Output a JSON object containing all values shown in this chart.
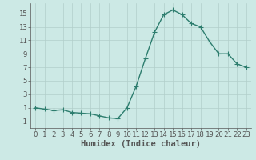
{
  "x": [
    0,
    1,
    2,
    3,
    4,
    5,
    6,
    7,
    8,
    9,
    10,
    11,
    12,
    13,
    14,
    15,
    16,
    17,
    18,
    19,
    20,
    21,
    22,
    23
  ],
  "y": [
    1.0,
    0.8,
    0.6,
    0.7,
    0.3,
    0.2,
    0.1,
    -0.2,
    -0.5,
    -0.6,
    1.0,
    4.2,
    8.3,
    12.2,
    14.8,
    15.5,
    14.8,
    13.5,
    13.0,
    10.8,
    9.0,
    9.0,
    7.5,
    7.0
  ],
  "line_color": "#2d7d6e",
  "marker": "+",
  "marker_size": 4,
  "bg_color": "#cce9e5",
  "grid_color": "#b2ceca",
  "axis_color": "#555555",
  "xlabel": "Humidex (Indice chaleur)",
  "xlim": [
    -0.5,
    23.5
  ],
  "ylim": [
    -2.0,
    16.5
  ],
  "yticks": [
    -1,
    1,
    3,
    5,
    7,
    9,
    11,
    13,
    15
  ],
  "xticks": [
    0,
    1,
    2,
    3,
    4,
    5,
    6,
    7,
    8,
    9,
    10,
    11,
    12,
    13,
    14,
    15,
    16,
    17,
    18,
    19,
    20,
    21,
    22,
    23
  ],
  "tick_fontsize": 6.5,
  "xlabel_fontsize": 7.5,
  "linewidth": 1.0,
  "marker_linewidth": 0.8
}
